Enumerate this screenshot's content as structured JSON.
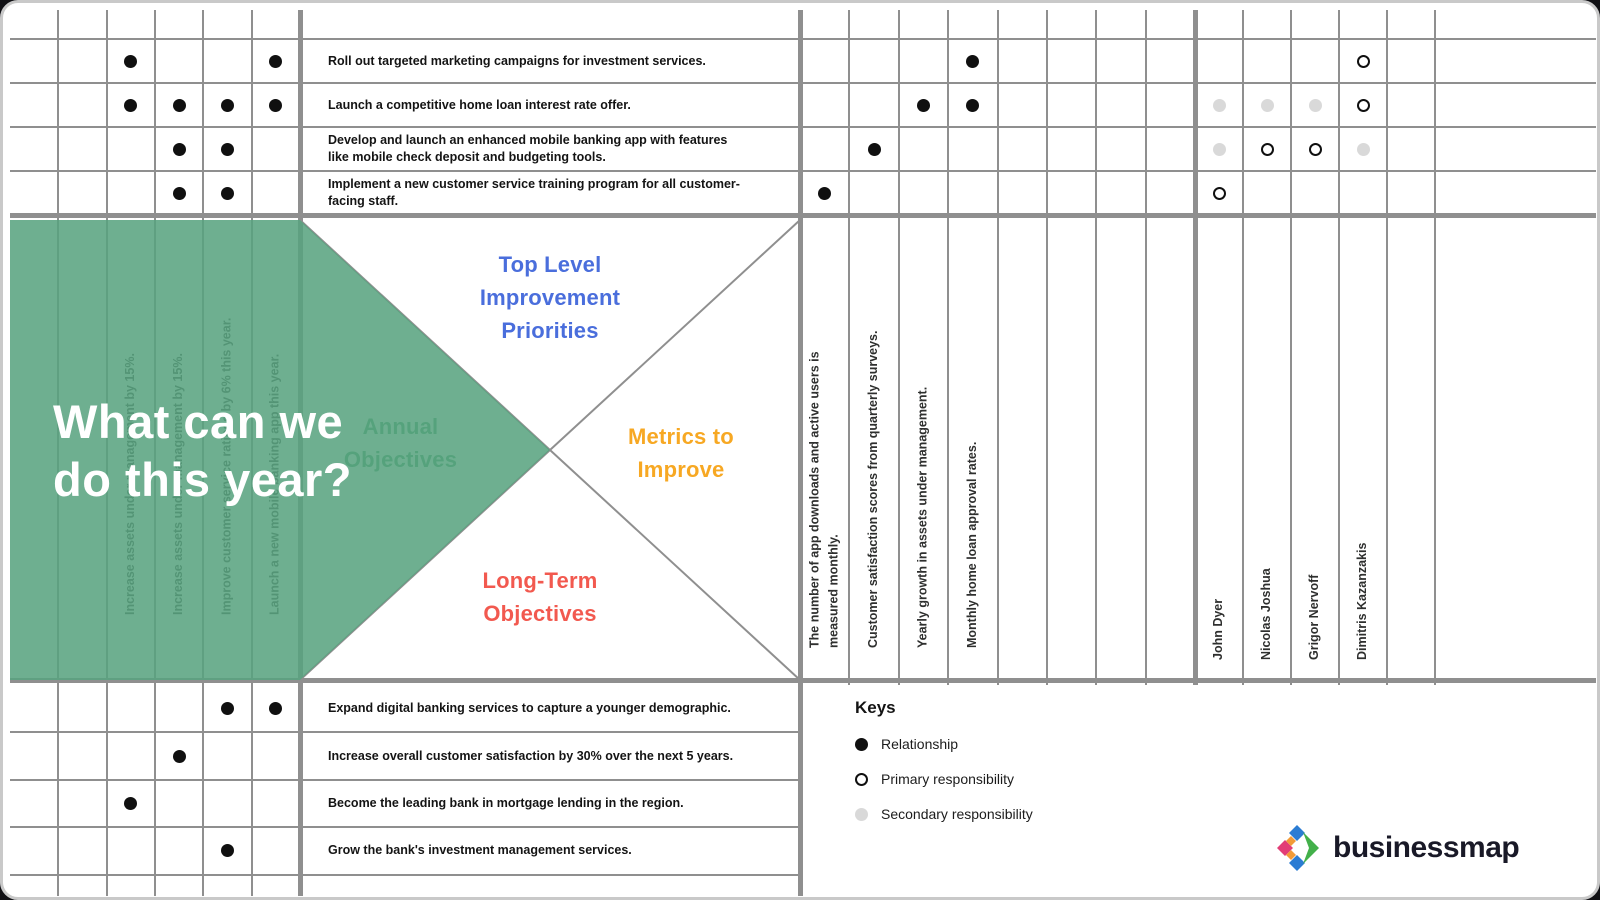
{
  "overlay": {
    "heading_line1": "What can we",
    "heading_line2": "do this year?"
  },
  "quadrants": {
    "top": {
      "label": "Top Level Improvement Priorities",
      "color": "#4a6edc"
    },
    "left": {
      "label": "Annual Objectives",
      "color": "#3d9c63"
    },
    "right": {
      "label": "Metrics to Improve",
      "color": "#f7a823"
    },
    "bottom": {
      "label": "Long-Term Objectives",
      "color": "#f2594f"
    }
  },
  "annual_objectives": [
    {
      "column": 3,
      "label": "Increase assets under management by 15%."
    },
    {
      "column": 4,
      "label": "Increase assets under management by 15%."
    },
    {
      "column": 5,
      "label": "Improve customer service ratings by 6% this year."
    },
    {
      "column": 6,
      "label": "Launch a new mobile banking app this year."
    }
  ],
  "metrics": [
    "The number of app downloads and active users is measured monthly.",
    "Customer satisfaction scores from quarterly surveys.",
    "Yearly growth in assets under management.",
    "Monthly home loan approval rates."
  ],
  "people": [
    "John Dyer",
    "Nicolas Joshua",
    "Grigor Nervoff",
    "Dimitris Kazanzakis"
  ],
  "improvement_priorities": [
    {
      "label": "Roll out targeted marketing campaigns for investment services.",
      "objective_relations": [
        3,
        6
      ],
      "metric_relations": [
        4
      ],
      "responsibilities": [
        {
          "person": 4,
          "type": "primary"
        }
      ]
    },
    {
      "label": "Launch a competitive home loan interest rate offer.",
      "objective_relations": [
        3,
        4,
        5,
        6
      ],
      "metric_relations": [
        3,
        4
      ],
      "responsibilities": [
        {
          "person": 1,
          "type": "secondary"
        },
        {
          "person": 2,
          "type": "secondary"
        },
        {
          "person": 3,
          "type": "secondary"
        },
        {
          "person": 4,
          "type": "primary"
        }
      ]
    },
    {
      "label": "Develop and launch an enhanced mobile banking app with features like mobile check deposit and budgeting tools.",
      "objective_relations": [
        4,
        5
      ],
      "metric_relations": [
        2
      ],
      "responsibilities": [
        {
          "person": 1,
          "type": "secondary"
        },
        {
          "person": 2,
          "type": "primary"
        },
        {
          "person": 3,
          "type": "primary"
        },
        {
          "person": 4,
          "type": "secondary"
        }
      ]
    },
    {
      "label": "Implement a new customer service training program for all customer-facing staff.",
      "objective_relations": [
        4,
        5
      ],
      "metric_relations": [
        1
      ],
      "responsibilities": [
        {
          "person": 1,
          "type": "primary"
        }
      ]
    }
  ],
  "long_term_objectives": [
    {
      "label": "Expand digital banking services to capture a younger demographic.",
      "objective_relations": [
        5,
        6
      ]
    },
    {
      "label": "Increase overall customer satisfaction by 30% over the next 5 years.",
      "objective_relations": [
        4
      ]
    },
    {
      "label": "Become the leading bank in mortgage lending in the region.",
      "objective_relations": [
        3
      ]
    },
    {
      "label": "Grow the bank's investment management services.",
      "objective_relations": [
        5
      ]
    }
  ],
  "keys": {
    "title": "Keys",
    "items": [
      {
        "symbol": "relationship",
        "label": "Relationship"
      },
      {
        "symbol": "primary",
        "label": "Primary responsibility"
      },
      {
        "symbol": "secondary",
        "label": "Secondary responsibility"
      }
    ]
  },
  "logo": {
    "text": "businessmap"
  },
  "colors": {
    "overlay_green": "#58a37f",
    "grid_line": "#8f8f8f",
    "relationship_dot": "#101010",
    "secondary_dot": "#d9d9d9"
  }
}
